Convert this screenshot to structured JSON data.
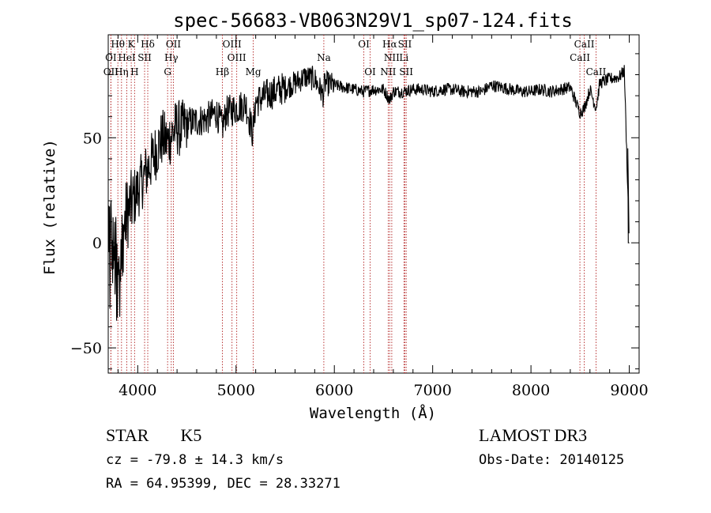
{
  "chart_data": {
    "type": "line",
    "title": "spec-56683-VB063N29V1_sp07-124.fits",
    "xlabel": "Wavelength (Å)",
    "ylabel": "Flux (relative)",
    "xlim": [
      3700,
      9100
    ],
    "ylim": [
      -62,
      99
    ],
    "xticks": [
      4000,
      5000,
      6000,
      7000,
      8000,
      9000
    ],
    "yticks": [
      -50,
      0,
      50
    ],
    "grid": false,
    "series": [
      {
        "name": "spectrum",
        "x": [
          3700,
          3750,
          3800,
          3850,
          3900,
          3950,
          4000,
          4050,
          4100,
          4150,
          4200,
          4250,
          4300,
          4350,
          4400,
          4450,
          4500,
          4600,
          4700,
          4800,
          4860,
          4900,
          5000,
          5100,
          5170,
          5200,
          5300,
          5400,
          5500,
          5600,
          5700,
          5800,
          5890,
          5900,
          6000,
          6100,
          6200,
          6300,
          6400,
          6500,
          6563,
          6600,
          6700,
          6800,
          6900,
          7000,
          7100,
          7200,
          7300,
          7400,
          7500,
          7600,
          7700,
          7800,
          7900,
          8000,
          8100,
          8200,
          8300,
          8400,
          8498,
          8542,
          8600,
          8662,
          8700,
          8800,
          8900,
          8950,
          9000
        ],
        "values": [
          10,
          0,
          -20,
          5,
          15,
          20,
          25,
          30,
          35,
          40,
          45,
          50,
          48,
          52,
          55,
          54,
          57,
          58,
          59,
          62,
          55,
          62,
          64,
          66,
          52,
          67,
          70,
          72,
          74,
          76,
          79,
          78,
          70,
          76,
          75,
          74,
          73,
          72,
          73,
          73,
          68,
          72,
          72,
          73,
          73,
          72,
          73,
          73,
          72,
          72,
          72,
          75,
          74,
          73,
          72,
          72,
          73,
          72,
          73,
          74,
          62,
          64,
          73,
          64,
          76,
          78,
          79,
          82,
          0
        ]
      }
    ],
    "lines_upper": [
      {
        "label": "Hθ",
        "x": 3798
      },
      {
        "label": "K",
        "x": 3934
      },
      {
        "label": "Hδ",
        "x": 4102
      },
      {
        "label": "OII",
        "x": 4363
      },
      {
        "label": "OIII",
        "x": 4959
      },
      {
        "label": "OI",
        "x": 6300
      },
      {
        "label": "Hα",
        "x": 6563
      },
      {
        "label": "SII",
        "x": 6717
      },
      {
        "label": "CaII",
        "x": 8542
      }
    ],
    "lines_middle": [
      {
        "label": "OI",
        "x": 3727
      },
      {
        "label": "HeI",
        "x": 3889
      },
      {
        "label": "SII",
        "x": 4070
      },
      {
        "label": "Hγ",
        "x": 4341
      },
      {
        "label": "OIII",
        "x": 5007
      },
      {
        "label": "Na",
        "x": 5893
      },
      {
        "label": "NII",
        "x": 6584
      },
      {
        "label": "Li",
        "x": 6708
      },
      {
        "label": "CaII",
        "x": 8498
      }
    ],
    "lines_lower": [
      {
        "label": "OII",
        "x": 3727
      },
      {
        "label": "Hη",
        "x": 3835
      },
      {
        "label": "H",
        "x": 3968
      },
      {
        "label": "G",
        "x": 4304
      },
      {
        "label": "Hβ",
        "x": 4861
      },
      {
        "label": "Mg",
        "x": 5175
      },
      {
        "label": "OI",
        "x": 6364
      },
      {
        "label": "NII",
        "x": 6548
      },
      {
        "label": "SII",
        "x": 6731
      },
      {
        "label": "CaII",
        "x": 8662
      }
    ],
    "line_color": "#000000",
    "marker_color": "#b22222"
  },
  "info": {
    "object_type": "STAR",
    "subclass": "K5",
    "survey": "LAMOST DR3",
    "redshift": "cz = -79.8 ± 14.3 km/s",
    "obs_date": "Obs-Date: 20140125",
    "coords": "RA =  64.95399, DEC =  28.33271"
  }
}
